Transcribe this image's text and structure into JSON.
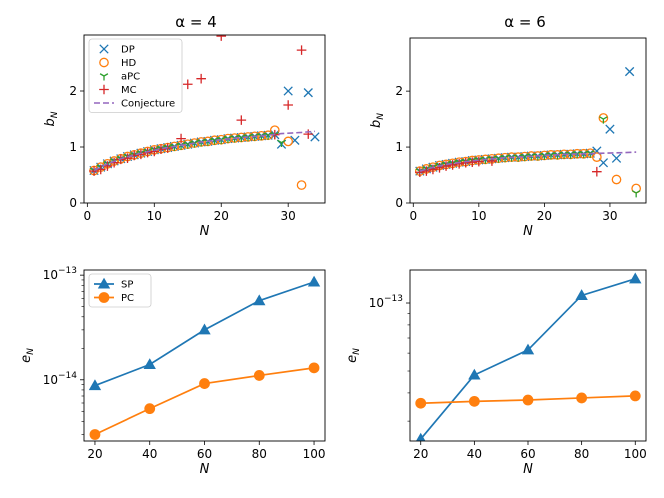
{
  "colors": {
    "DP": "#1f77b4",
    "HD": "#ff7f0e",
    "aPC": "#2ca02c",
    "MC": "#d62728",
    "Conjecture": "#9467bd",
    "SP": "#1f77b4",
    "PC": "#ff7f0e"
  },
  "chart_data": [
    {
      "id": "tl",
      "type": "scatter",
      "title": "α = 4",
      "xlabel": "N",
      "ylabel": "b_N",
      "ylabel_main": "b",
      "ylabel_sub": "N",
      "xlim": [
        -0.5,
        35.5
      ],
      "ylim": [
        0,
        3.0
      ],
      "xticks": [
        0,
        10,
        20,
        30
      ],
      "yticks": [
        0,
        1,
        2
      ],
      "legend": {
        "position": "top-left",
        "entries": [
          "DP",
          "HD",
          "aPC",
          "MC",
          "Conjecture"
        ]
      },
      "series": [
        {
          "name": "DP",
          "marker": "x",
          "x": [
            1,
            2,
            3,
            4,
            5,
            6,
            7,
            8,
            9,
            10,
            11,
            12,
            13,
            14,
            15,
            16,
            17,
            18,
            19,
            20,
            21,
            22,
            23,
            24,
            25,
            26,
            27,
            28,
            29,
            30,
            31,
            33,
            34
          ],
          "y": [
            0.58,
            0.64,
            0.7,
            0.75,
            0.79,
            0.83,
            0.86,
            0.89,
            0.92,
            0.95,
            0.97,
            0.99,
            1.01,
            1.03,
            1.05,
            1.07,
            1.09,
            1.1,
            1.12,
            1.13,
            1.15,
            1.16,
            1.17,
            1.18,
            1.19,
            1.2,
            1.21,
            1.22,
            1.05,
            2.0,
            1.12,
            1.97,
            1.18
          ]
        },
        {
          "name": "HD",
          "marker": "o",
          "x": [
            1,
            2,
            3,
            4,
            5,
            6,
            7,
            8,
            9,
            10,
            11,
            12,
            13,
            14,
            15,
            16,
            17,
            18,
            19,
            20,
            21,
            22,
            23,
            24,
            25,
            26,
            27,
            28,
            30,
            32
          ],
          "y": [
            0.58,
            0.64,
            0.7,
            0.75,
            0.79,
            0.83,
            0.86,
            0.89,
            0.92,
            0.95,
            0.97,
            0.99,
            1.01,
            1.03,
            1.05,
            1.07,
            1.09,
            1.1,
            1.12,
            1.13,
            1.15,
            1.16,
            1.17,
            1.18,
            1.19,
            1.2,
            1.21,
            1.3,
            1.1,
            0.32
          ]
        },
        {
          "name": "aPC",
          "marker": "tri",
          "x": [
            1,
            2,
            3,
            4,
            5,
            6,
            7,
            8,
            9,
            10,
            11,
            12,
            13,
            14,
            15,
            16,
            17,
            18,
            19,
            20,
            21,
            22,
            23,
            24,
            25,
            26,
            27,
            28,
            29
          ],
          "y": [
            0.58,
            0.64,
            0.7,
            0.75,
            0.79,
            0.83,
            0.86,
            0.89,
            0.92,
            0.95,
            0.97,
            0.99,
            1.01,
            1.03,
            1.05,
            1.07,
            1.09,
            1.1,
            1.12,
            1.13,
            1.15,
            1.16,
            1.17,
            1.18,
            1.19,
            1.2,
            1.21,
            1.22,
            1.08
          ]
        },
        {
          "name": "MC",
          "marker": "+",
          "x": [
            1,
            2,
            3,
            4,
            5,
            6,
            7,
            8,
            9,
            10,
            11,
            12,
            14,
            15,
            17,
            20,
            23,
            28,
            30,
            32,
            33
          ],
          "y": [
            0.57,
            0.6,
            0.66,
            0.72,
            0.78,
            0.8,
            0.85,
            0.87,
            0.9,
            0.92,
            0.96,
            0.98,
            1.15,
            2.12,
            2.22,
            2.98,
            1.48,
            1.22,
            1.75,
            2.73,
            1.23
          ]
        },
        {
          "name": "Conjecture",
          "marker": "dashed-line",
          "x": [
            1,
            3,
            5,
            8,
            11,
            14,
            17,
            20,
            23,
            26,
            29,
            32,
            34
          ],
          "y": [
            0.58,
            0.7,
            0.79,
            0.89,
            0.97,
            1.03,
            1.09,
            1.13,
            1.17,
            1.2,
            1.24,
            1.26,
            1.28
          ]
        }
      ]
    },
    {
      "id": "tr",
      "type": "scatter",
      "title": "α = 6",
      "xlabel": "N",
      "ylabel": "b_N",
      "ylabel_main": "b",
      "ylabel_sub": "N",
      "xlim": [
        -0.5,
        35.5
      ],
      "ylim": [
        0,
        2.95
      ],
      "xticks": [
        0,
        10,
        20,
        30
      ],
      "yticks": [
        0,
        1,
        2
      ],
      "series": [
        {
          "name": "DP",
          "marker": "x",
          "x": [
            1,
            2,
            3,
            4,
            5,
            6,
            7,
            8,
            9,
            10,
            11,
            12,
            13,
            14,
            15,
            16,
            17,
            18,
            19,
            20,
            21,
            22,
            23,
            24,
            25,
            26,
            27,
            28,
            29,
            30,
            31,
            33
          ],
          "y": [
            0.57,
            0.61,
            0.64,
            0.67,
            0.69,
            0.71,
            0.73,
            0.74,
            0.76,
            0.77,
            0.78,
            0.79,
            0.8,
            0.81,
            0.82,
            0.82,
            0.83,
            0.84,
            0.84,
            0.85,
            0.86,
            0.86,
            0.87,
            0.87,
            0.88,
            0.88,
            0.89,
            0.93,
            0.72,
            1.32,
            0.8,
            2.35
          ]
        },
        {
          "name": "HD",
          "marker": "o",
          "x": [
            1,
            2,
            3,
            4,
            5,
            6,
            7,
            8,
            9,
            10,
            11,
            12,
            13,
            14,
            15,
            16,
            17,
            18,
            19,
            20,
            21,
            22,
            23,
            24,
            25,
            26,
            27,
            28,
            29,
            31,
            34
          ],
          "y": [
            0.57,
            0.61,
            0.64,
            0.67,
            0.69,
            0.71,
            0.73,
            0.74,
            0.76,
            0.77,
            0.78,
            0.79,
            0.8,
            0.81,
            0.82,
            0.82,
            0.83,
            0.84,
            0.84,
            0.85,
            0.86,
            0.86,
            0.87,
            0.87,
            0.88,
            0.88,
            0.89,
            0.82,
            1.52,
            0.42,
            0.26
          ]
        },
        {
          "name": "aPC",
          "marker": "tri",
          "x": [
            1,
            2,
            3,
            4,
            5,
            6,
            7,
            8,
            9,
            10,
            11,
            12,
            13,
            14,
            15,
            16,
            17,
            18,
            19,
            20,
            21,
            22,
            23,
            24,
            25,
            26,
            27,
            29,
            34
          ],
          "y": [
            0.57,
            0.61,
            0.64,
            0.67,
            0.69,
            0.71,
            0.73,
            0.74,
            0.76,
            0.77,
            0.78,
            0.79,
            0.8,
            0.81,
            0.82,
            0.82,
            0.83,
            0.84,
            0.84,
            0.85,
            0.86,
            0.86,
            0.87,
            0.87,
            0.88,
            0.88,
            0.89,
            1.5,
            0.18
          ]
        },
        {
          "name": "MC",
          "marker": "+",
          "x": [
            1,
            2,
            3,
            4,
            5,
            6,
            7,
            8,
            9,
            10,
            12,
            28
          ],
          "y": [
            0.55,
            0.57,
            0.6,
            0.63,
            0.66,
            0.68,
            0.7,
            0.72,
            0.73,
            0.74,
            0.75,
            0.56
          ]
        },
        {
          "name": "Conjecture",
          "marker": "dashed-line",
          "x": [
            1,
            3,
            5,
            8,
            11,
            14,
            17,
            20,
            23,
            26,
            29,
            32,
            34
          ],
          "y": [
            0.57,
            0.64,
            0.69,
            0.74,
            0.78,
            0.81,
            0.83,
            0.85,
            0.87,
            0.88,
            0.89,
            0.9,
            0.91
          ]
        }
      ]
    },
    {
      "id": "bl",
      "type": "line",
      "yscale": "log",
      "xlabel": "N",
      "ylabel": "e_N",
      "ylabel_main": "e",
      "ylabel_sub": "N",
      "xlim": [
        16,
        104
      ],
      "ylim": [
        2.6e-15,
        1.12e-13
      ],
      "xticks": [
        20,
        40,
        60,
        80,
        100
      ],
      "yticks": [
        {
          "base": "10",
          "exp": "−13",
          "value": 1e-13
        },
        {
          "base": "10",
          "exp": "−14",
          "value": 1e-14
        }
      ],
      "legend": {
        "position": "top-left",
        "entries": [
          "SP",
          "PC"
        ]
      },
      "series": [
        {
          "name": "SP",
          "marker": "triangle",
          "x": [
            20,
            40,
            60,
            80,
            100
          ],
          "y": [
            8.8e-15,
            1.4e-14,
            3e-14,
            5.7e-14,
            8.6e-14
          ]
        },
        {
          "name": "PC",
          "marker": "circle",
          "x": [
            20,
            40,
            60,
            80,
            100
          ],
          "y": [
            3e-15,
            5.3e-15,
            9.2e-15,
            1.1e-14,
            1.3e-14
          ]
        }
      ]
    },
    {
      "id": "br",
      "type": "line",
      "yscale": "log",
      "xlabel": "N",
      "ylabel": "e_N",
      "ylabel_main": "e",
      "ylabel_sub": "N",
      "xlim": [
        16,
        104
      ],
      "ylim": [
        2.45e-14,
        1.4e-13
      ],
      "xticks": [
        20,
        40,
        60,
        80,
        100
      ],
      "yticks": [
        {
          "base": "10",
          "exp": "−13",
          "value": 1e-13
        }
      ],
      "series": [
        {
          "name": "SP",
          "marker": "triangle",
          "x": [
            20,
            40,
            60,
            80,
            100
          ],
          "y": [
            2.5e-14,
            4.8e-14,
            6.2e-14,
            1.08e-13,
            1.28e-13
          ]
        },
        {
          "name": "PC",
          "marker": "circle",
          "x": [
            20,
            40,
            60,
            80,
            100
          ],
          "y": [
            3.6e-14,
            3.67e-14,
            3.72e-14,
            3.8e-14,
            3.88e-14
          ]
        }
      ]
    }
  ]
}
